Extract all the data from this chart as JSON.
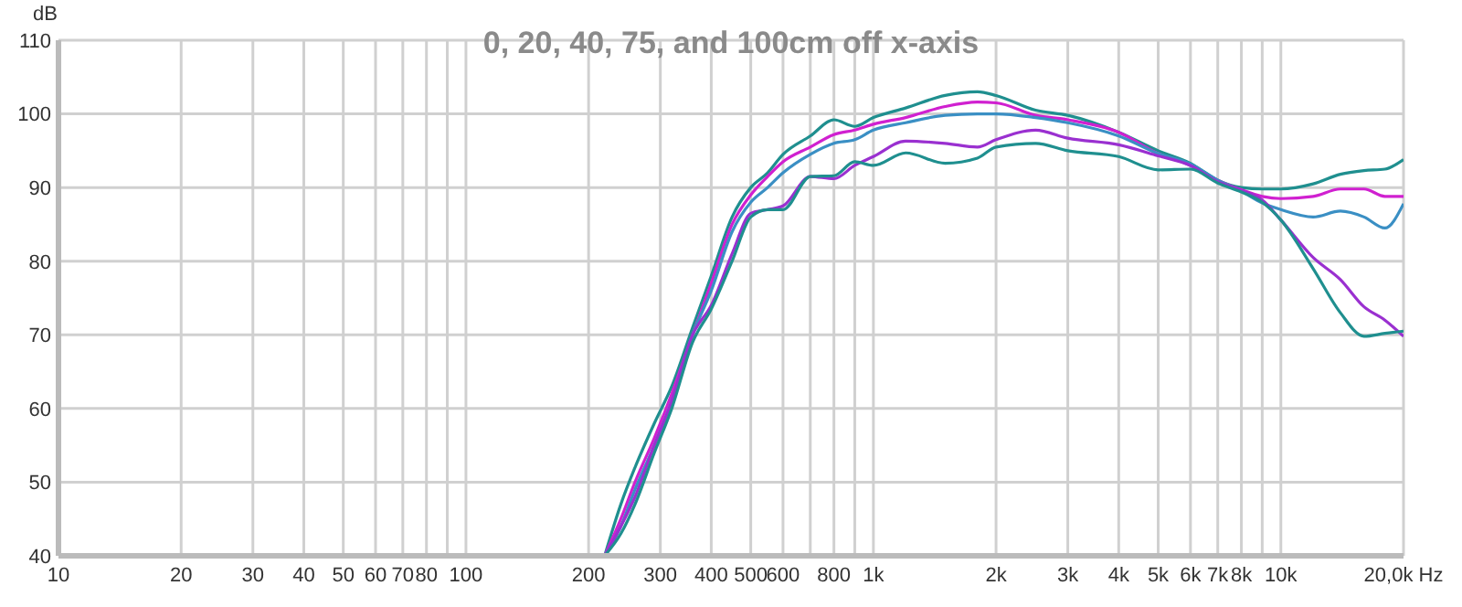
{
  "chart_data": {
    "type": "line",
    "title": "0, 20, 40, 75, and 100cm off x-axis",
    "ylabel": "dB",
    "log": "x",
    "grid": true,
    "legend": false,
    "marker": "none",
    "line_style": "solid",
    "x": [
      219,
      240,
      260,
      290,
      320,
      360,
      400,
      450,
      500,
      550,
      600,
      700,
      800,
      900,
      1000,
      1200,
      1500,
      1800,
      2000,
      2500,
      3000,
      4000,
      5000,
      6000,
      7000,
      8000,
      9000,
      10000,
      12000,
      14000,
      16000,
      18000,
      20000
    ],
    "xlim": [
      10,
      20000
    ],
    "xticks": [
      10,
      20,
      30,
      40,
      50,
      60,
      70,
      80,
      {
        "value": 90,
        "label": null
      },
      100,
      200,
      300,
      400,
      500,
      600,
      {
        "value": 700,
        "label": null
      },
      800,
      {
        "value": 900,
        "label": null
      },
      {
        "value": 1000,
        "label": "1k"
      },
      {
        "value": 2000,
        "label": "2k"
      },
      {
        "value": 3000,
        "label": "3k"
      },
      {
        "value": 4000,
        "label": "4k"
      },
      {
        "value": 5000,
        "label": "5k"
      },
      {
        "value": 6000,
        "label": "6k"
      },
      {
        "value": 7000,
        "label": "7k"
      },
      {
        "value": 8000,
        "label": "8k"
      },
      {
        "value": 9000,
        "label": null
      },
      {
        "value": 10000,
        "label": "10k"
      },
      {
        "value": 20000,
        "label": "20,0k Hz"
      }
    ],
    "ylim": [
      40,
      110
    ],
    "yticks": [
      40,
      50,
      60,
      70,
      80,
      90,
      100,
      110
    ],
    "series": [
      {
        "color": "#1f8f8f",
        "values": [
          40,
          47,
          52,
          58,
          63,
          71,
          78,
          86,
          90,
          92,
          94.5,
          97,
          99.2,
          98.3,
          99.5,
          100.8,
          102.5,
          103,
          102.5,
          100.5,
          99.8,
          97.5,
          95,
          93.3,
          91,
          90,
          89.8,
          89.8,
          90.5,
          91.8,
          92.3,
          92.5,
          93.8
        ]
      },
      {
        "color": "#d020d0",
        "values": [
          40,
          45,
          50,
          56,
          62,
          70,
          77,
          85,
          89,
          91.5,
          93.5,
          95.5,
          97.2,
          97.8,
          98.6,
          99.5,
          101,
          101.6,
          101.5,
          99.8,
          99.2,
          97.5,
          94.6,
          93,
          91,
          89.7,
          88.8,
          88.5,
          88.8,
          89.8,
          89.8,
          88.8,
          88.8
        ]
      },
      {
        "color": "#3a8fc4",
        "values": [
          40,
          44,
          49,
          55,
          61,
          70,
          76,
          84,
          88,
          90,
          92,
          94.5,
          96,
          96.5,
          97.8,
          98.8,
          99.8,
          100,
          100,
          99.5,
          98.8,
          97,
          94.6,
          93.2,
          91,
          89.5,
          87.9,
          87,
          86,
          86.8,
          86,
          84.5,
          87.8
        ]
      },
      {
        "color": "#9a30d0",
        "values": [
          40,
          44,
          48,
          55,
          61,
          70,
          74,
          81,
          86.5,
          87,
          87.5,
          91.5,
          91.2,
          93,
          94.2,
          96.3,
          96,
          95.5,
          96.5,
          97.8,
          96.7,
          95.8,
          94.3,
          93,
          90.8,
          89.6,
          88.3,
          85.6,
          80.5,
          77.5,
          73.8,
          72,
          69.8
        ]
      },
      {
        "color": "#1f8f8f",
        "values": [
          40,
          43,
          47,
          54,
          60,
          69,
          73.5,
          80,
          86,
          87,
          87,
          91.5,
          91.6,
          93.5,
          93,
          94.7,
          93.3,
          94,
          95.5,
          96,
          95,
          94.2,
          92.4,
          92.5,
          90.6,
          89.4,
          88,
          85.6,
          79,
          73,
          69.8,
          70.2,
          70.5
        ]
      }
    ]
  }
}
